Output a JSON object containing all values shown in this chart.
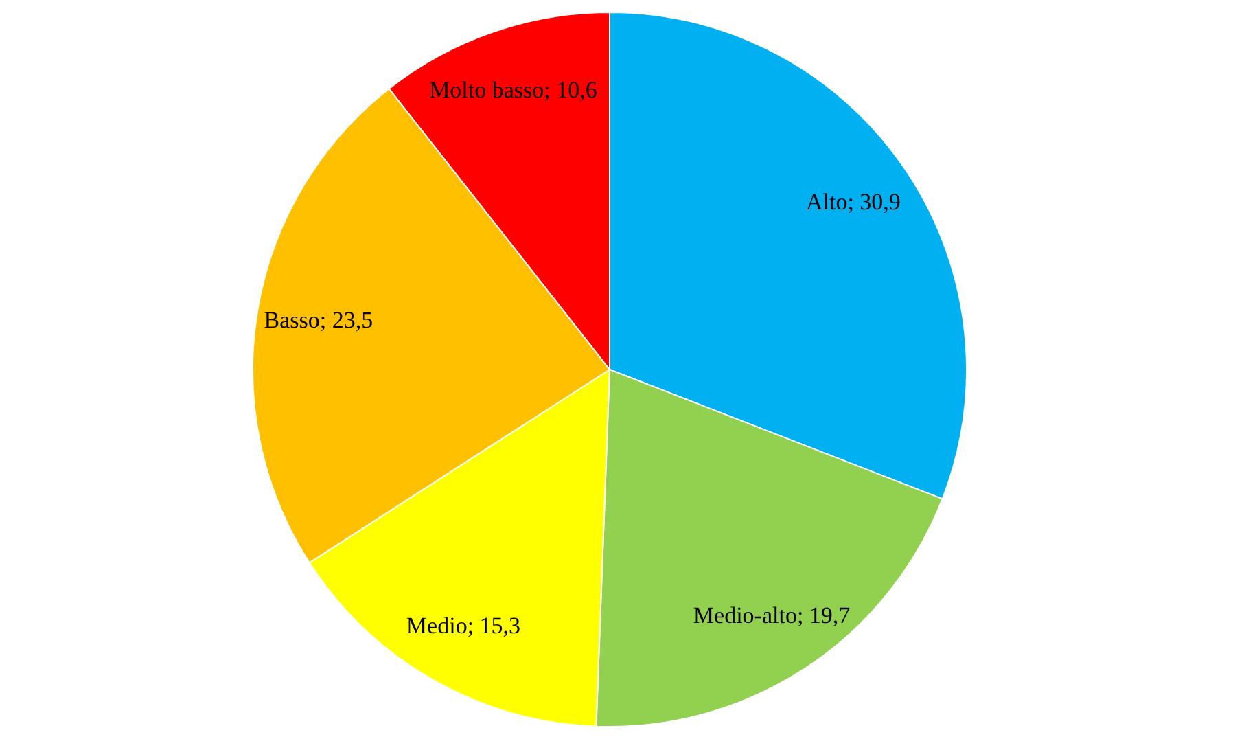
{
  "chart_data": {
    "type": "pie",
    "categories": [
      "Alto",
      "Medio-alto",
      "Medio",
      "Basso",
      "Molto basso"
    ],
    "values": [
      30.9,
      19.7,
      15.3,
      23.5,
      10.6
    ],
    "colors": [
      "#00b0f0",
      "#92d050",
      "#ffff00",
      "#ffc000",
      "#ff0000"
    ],
    "value_labels": [
      "30,9",
      "19,7",
      "15,3",
      "23,5",
      "10,6"
    ],
    "legend": false
  }
}
